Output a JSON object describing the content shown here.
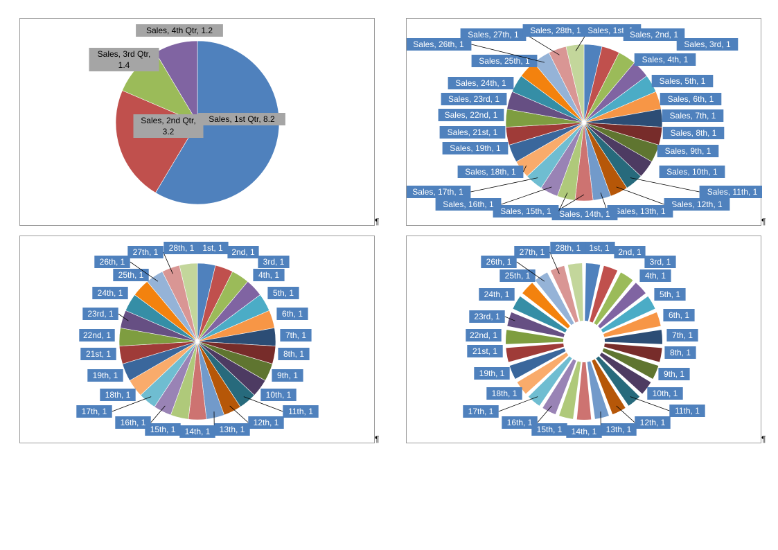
{
  "pilcrow": "¶",
  "colors": {
    "palette": [
      "#4F81BD",
      "#C0504D",
      "#9BBB59",
      "#8064A2",
      "#4BACC6",
      "#F79646",
      "#2C4D75",
      "#772C2A",
      "#5F7530",
      "#4D3B62",
      "#276A7C",
      "#B65708",
      "#729ACA",
      "#CD7371",
      "#AFC97A",
      "#9983B5",
      "#6FBDD1",
      "#F9AB6B",
      "#3A679C",
      "#9F3B38",
      "#7E9D40",
      "#664F83",
      "#358EA6",
      "#F3820E",
      "#95B3D7",
      "#D99694",
      "#C3D69B",
      "#B2A2C7"
    ],
    "pie1": [
      "#4F81BD",
      "#C0504D",
      "#9BBB59",
      "#8064A2"
    ],
    "label_box": "#4F81BD",
    "label_box_grey": "#A5A5A5",
    "leader": "#000000"
  },
  "chart_data": [
    {
      "type": "pie",
      "categories": [
        "1st Qtr",
        "2nd Qtr",
        "3rd Qtr",
        "4th Qtr"
      ],
      "series": [
        {
          "name": "Sales",
          "values": [
            8.2,
            3.2,
            1.4,
            1.2
          ]
        }
      ],
      "labels": [
        "Sales, 1st Qtr, 8.2",
        [
          "Sales, 2nd Qtr,",
          "3.2"
        ],
        [
          "Sales, 3rd Qtr,",
          "1.4"
        ],
        "Sales, 4th Qtr, 1.2"
      ]
    },
    {
      "type": "pie",
      "categories": [
        "1st",
        "2nd",
        "3rd",
        "4th",
        "5th",
        "6th",
        "7th",
        "8th",
        "9th",
        "10th",
        "11th",
        "12th",
        "13th",
        "14th",
        "15th",
        "16th",
        "17th",
        "18th",
        "19th",
        "21st",
        "22nd",
        "23rd",
        "24th",
        "25th",
        "26th",
        "27th",
        "28th"
      ],
      "series": [
        {
          "name": "Sales",
          "values": [
            1,
            1,
            1,
            1,
            1,
            1,
            1,
            1,
            1,
            1,
            1,
            1,
            1,
            1,
            1,
            1,
            1,
            1,
            1,
            1,
            1,
            1,
            1,
            1,
            1,
            1,
            1
          ]
        }
      ],
      "labels": [
        "Sales, 1st, 1",
        "Sales, 2nd, 1",
        "Sales, 3rd, 1",
        "Sales, 4th, 1",
        "Sales, 5th, 1",
        "Sales, 6th, 1",
        "Sales, 7th, 1",
        "Sales, 8th, 1",
        "Sales, 9th, 1",
        "Sales, 10th, 1",
        "Sales, 11th, 1",
        "Sales, 12th, 1",
        "Sales, 13th, 1",
        "Sales, 14th, 1",
        "Sales, 15th, 1",
        "Sales, 16th, 1",
        "Sales, 17th, 1",
        "Sales, 18th, 1",
        "Sales, 19th, 1",
        "Sales, 21st, 1",
        "Sales, 22nd, 1",
        "Sales, 23rd, 1",
        "Sales, 24th, 1",
        "Sales, 25th, 1",
        "Sales, 26th, 1",
        "Sales, 27th, 1",
        "Sales, 28th, 1"
      ]
    },
    {
      "type": "pie",
      "categories": [
        "1st",
        "2nd",
        "3rd",
        "4th",
        "5th",
        "6th",
        "7th",
        "8th",
        "9th",
        "10th",
        "11th",
        "12th",
        "13th",
        "14th",
        "15th",
        "16th",
        "17th",
        "18th",
        "19th",
        "21st",
        "22nd",
        "23rd",
        "24th",
        "25th",
        "26th",
        "27th",
        "28th"
      ],
      "series": [
        {
          "values": [
            1,
            1,
            1,
            1,
            1,
            1,
            1,
            1,
            1,
            1,
            1,
            1,
            1,
            1,
            1,
            1,
            1,
            1,
            1,
            1,
            1,
            1,
            1,
            1,
            1,
            1,
            1
          ]
        }
      ],
      "labels": [
        "1st, 1",
        "2nd, 1",
        "3rd, 1",
        "4th, 1",
        "5th, 1",
        "6th, 1",
        "7th, 1",
        "8th, 1",
        "9th, 1",
        "10th, 1",
        "11th, 1",
        "12th, 1",
        "13th, 1",
        "14th, 1",
        "15th, 1",
        "16th, 1",
        "17th, 1",
        "18th, 1",
        "19th, 1",
        "21st, 1",
        "22nd, 1",
        "23rd, 1",
        "24th, 1",
        "25th, 1",
        "26th, 1",
        "27th, 1",
        "28th, 1"
      ]
    },
    {
      "type": "pie",
      "exploded": true,
      "categories": [
        "1st",
        "2nd",
        "3rd",
        "4th",
        "5th",
        "6th",
        "7th",
        "8th",
        "9th",
        "10th",
        "11th",
        "12th",
        "13th",
        "14th",
        "15th",
        "16th",
        "17th",
        "18th",
        "19th",
        "21st",
        "22nd",
        "23rd",
        "24th",
        "25th",
        "26th",
        "27th",
        "28th"
      ],
      "series": [
        {
          "values": [
            1,
            1,
            1,
            1,
            1,
            1,
            1,
            1,
            1,
            1,
            1,
            1,
            1,
            1,
            1,
            1,
            1,
            1,
            1,
            1,
            1,
            1,
            1,
            1,
            1,
            1,
            1
          ]
        }
      ],
      "labels": [
        "1st, 1",
        "2nd, 1",
        "3rd, 1",
        "4th, 1",
        "5th, 1",
        "6th, 1",
        "7th, 1",
        "8th, 1",
        "9th, 1",
        "10th, 1",
        "11th, 1",
        "12th, 1",
        "13th, 1",
        "14th, 1",
        "15th, 1",
        "16th, 1",
        "17th, 1",
        "18th, 1",
        "19th, 1",
        "21st, 1",
        "22nd, 1",
        "23rd, 1",
        "24th, 1",
        "25th, 1",
        "26th, 1",
        "27th, 1",
        "28th, 1"
      ]
    }
  ]
}
